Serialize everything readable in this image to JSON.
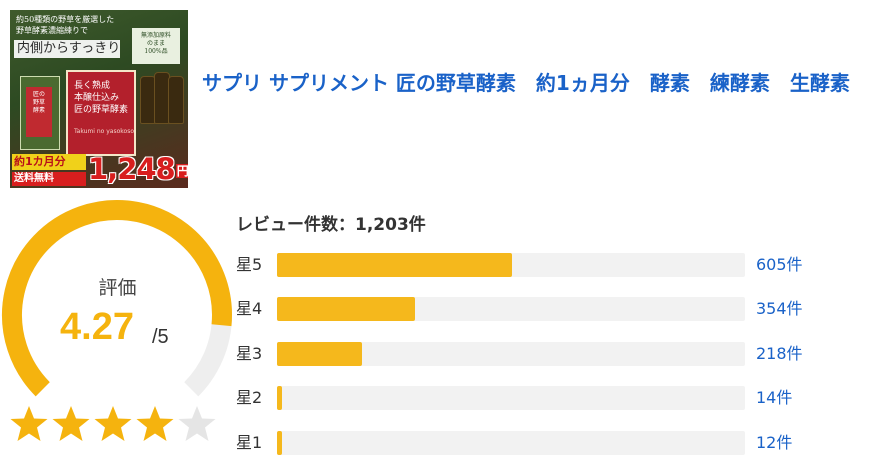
{
  "product": {
    "image": {
      "caption": "約50種類の野草を厳選した\n野草酵素濃縮練りで",
      "headline": "内側からすっきり",
      "seal": "無添加原料\nのまま\n100%品",
      "pack_text": "長く熟成\n本醸仕込み\n匠の野草酵素",
      "pack_sub": "Takumi no yasokoso",
      "side_label": "匠の\n野草\n酵素",
      "badge": "約1カ月分",
      "shipping": "送料無料",
      "price": "1,248",
      "price_unit": "円"
    },
    "title": "サプリ サプリメント 匠の野草酵素　約1ヵ月分　酵素　練酵素　生酵素"
  },
  "rating": {
    "label": "評価",
    "score": "4.27",
    "max": "/5",
    "score_value": 4.27,
    "max_value": 5,
    "accent_color": "#f5b30e",
    "track_color": "#eeeeee",
    "star_empty_color": "#e5e5e5"
  },
  "reviews": {
    "total_text": "レビュー件数：1,203件",
    "total": 1203,
    "fill_color": "#f5b81c",
    "rows": [
      {
        "label": "星5",
        "count_text": "605件",
        "count": 605
      },
      {
        "label": "星4",
        "count_text": "354件",
        "count": 354
      },
      {
        "label": "星3",
        "count_text": "218件",
        "count": 218
      },
      {
        "label": "星2",
        "count_text": "14件",
        "count": 14
      },
      {
        "label": "星1",
        "count_text": "12件",
        "count": 12
      }
    ]
  }
}
